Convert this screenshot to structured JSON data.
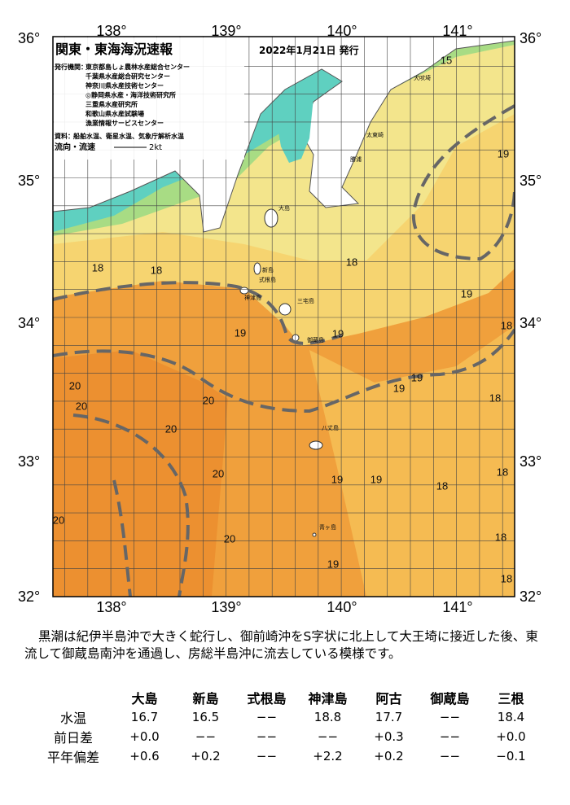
{
  "map": {
    "title": "関東・東海海況速報",
    "date": "2022年1月21日 発行",
    "agency_label": "発行機関：",
    "agencies": [
      "東京都島しょ農林水産総合センター",
      "千葉県水産総合研究センター",
      "神奈川県水産技術センター",
      "◎静岡県水産・海洋技術研究所",
      "三重県水産研究所",
      "和歌山県水産試験場",
      "漁業情報サービスセンター"
    ],
    "materials_label": "資料：",
    "materials": "船舶水温、衛星水温、気象庁解析水温",
    "legend_label": "流向・流速",
    "legend_speed": "2kt",
    "lon_labels": [
      "138°",
      "139°",
      "140°",
      "141°"
    ],
    "lat_labels": [
      "36°",
      "35°",
      "34°",
      "33°",
      "32°"
    ],
    "contour_labels": [
      15,
      19,
      18,
      18,
      18,
      19,
      18,
      19,
      19,
      19,
      19,
      18,
      20,
      20,
      20,
      20,
      20,
      18,
      18,
      19,
      19,
      20,
      20,
      18,
      19,
      18
    ],
    "place_names": [
      "犬吠埼",
      "太東崎",
      "勝浦",
      "大島",
      "新島",
      "式根島",
      "神津島",
      "三宅島",
      "御蔵島",
      "八丈島",
      "青ヶ島"
    ]
  },
  "summary": "黒潮は紀伊半島沖で大きく蛇行し、御前崎沖をS字状に北上して大王埼に接近した後、東流して御蔵島南沖を通過し、房総半島沖に流去している模様です。",
  "table": {
    "columns": [
      "大島",
      "新島",
      "式根島",
      "神津島",
      "阿古",
      "御蔵島",
      "三根"
    ],
    "rows": [
      {
        "label": "水温",
        "values": [
          "16.7",
          "16.5",
          "−−",
          "18.8",
          "17.7",
          "−−",
          "18.4"
        ]
      },
      {
        "label": "前日差",
        "values": [
          "+0.0",
          "−−",
          "−−",
          "−−",
          "+0.3",
          "−−",
          "+0.0"
        ]
      },
      {
        "label": "平年偏差",
        "values": [
          "+0.6",
          "+0.2",
          "−−",
          "+2.2",
          "+0.2",
          "−−",
          "−0.1"
        ]
      }
    ]
  }
}
